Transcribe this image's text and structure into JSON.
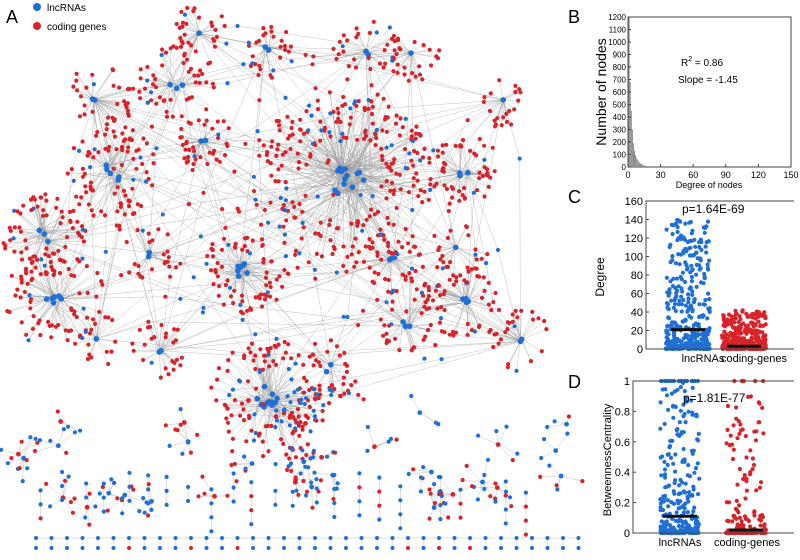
{
  "panels": {
    "a": {
      "label": "A"
    },
    "b": {
      "label": "B"
    },
    "c": {
      "label": "C"
    },
    "d": {
      "label": "D"
    }
  },
  "legend": [
    {
      "label": "lncRNAs",
      "color": "#1f6fd6"
    },
    {
      "label": "coding genes",
      "color": "#d6242a"
    }
  ],
  "colors": {
    "lnc": "#1f6fd6",
    "coding": "#d6242a",
    "edge": "#9a9a9a",
    "hist": "#8c8c8c"
  },
  "chart_data": [
    {
      "type": "network",
      "panel": "A",
      "node_types": [
        "lncRNAs",
        "coding genes"
      ]
    },
    {
      "type": "bar",
      "panel": "B",
      "xlabel": "Degree of nodes",
      "ylabel": "Number of nodes",
      "xlim": [
        0,
        150
      ],
      "ylim": [
        0,
        1200
      ],
      "xticks": [
        0,
        30,
        60,
        90,
        120,
        150
      ],
      "yticks": [
        0,
        100,
        200,
        300,
        400,
        500,
        600,
        700,
        800,
        900,
        1000,
        1100,
        1200
      ],
      "annotations": [
        "R",
        "2",
        " = 0.86",
        "Slope = -1.45"
      ],
      "x": [
        1,
        2,
        3,
        4,
        5,
        6,
        7,
        8,
        9,
        10,
        11,
        12,
        13,
        14,
        15,
        16,
        18,
        20,
        25,
        30
      ],
      "values": [
        1200,
        680,
        450,
        300,
        190,
        130,
        95,
        70,
        55,
        42,
        32,
        25,
        20,
        15,
        12,
        9,
        7,
        5,
        3,
        2
      ]
    },
    {
      "type": "scatter",
      "panel": "C",
      "ylabel": "Degree",
      "ylim": [
        0,
        160
      ],
      "yticks": [
        0,
        20,
        40,
        60,
        80,
        100,
        120,
        140,
        160
      ],
      "categories": [
        "lncRNAs",
        "coding-genes"
      ],
      "pvalue": "p=1.64E-69",
      "medians": [
        21,
        3
      ]
    },
    {
      "type": "scatter",
      "panel": "D",
      "ylabel": "BetweennessCentrality",
      "ylim": [
        0,
        1
      ],
      "yticks": [
        0,
        0.2,
        0.4,
        0.6,
        0.8,
        1
      ],
      "categories": [
        "lncRNAs",
        "coding-genes"
      ],
      "pvalue": "p=1.81E-77",
      "medians": [
        0.11,
        0.02
      ]
    }
  ]
}
